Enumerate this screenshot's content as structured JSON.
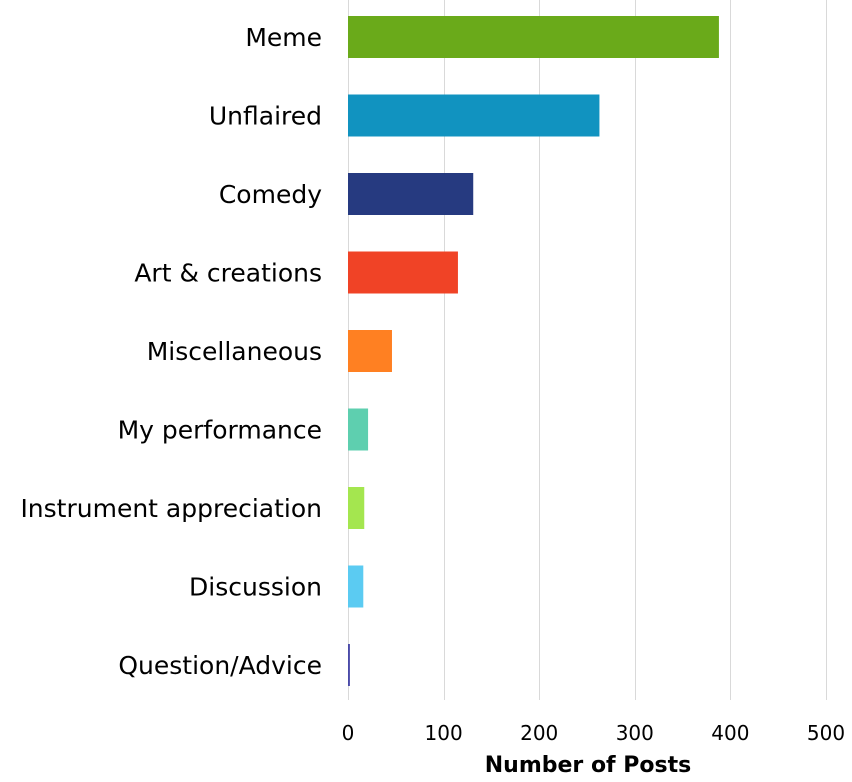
{
  "chart_data": {
    "type": "bar",
    "orientation": "horizontal",
    "categories": [
      "Meme",
      "Unflaired",
      "Comedy",
      "Art & creations",
      "Miscellaneous",
      "My performance",
      "Instrument appreciation",
      "Discussion",
      "Question/Advice"
    ],
    "values": [
      388,
      263,
      131,
      115,
      46,
      21,
      17,
      16,
      2
    ],
    "colors": [
      "#6aaa1a",
      "#1193c0",
      "#263a80",
      "#f04326",
      "#ff8022",
      "#5ecfaf",
      "#a4e64f",
      "#5bcbf2",
      "#4a4aa8"
    ],
    "title": "",
    "xlabel": "Number of Posts",
    "ylabel": "",
    "xlim": [
      0,
      500
    ],
    "xticks": [
      0,
      100,
      200,
      300,
      400,
      500
    ],
    "grid": "vertical",
    "legend": "none"
  }
}
